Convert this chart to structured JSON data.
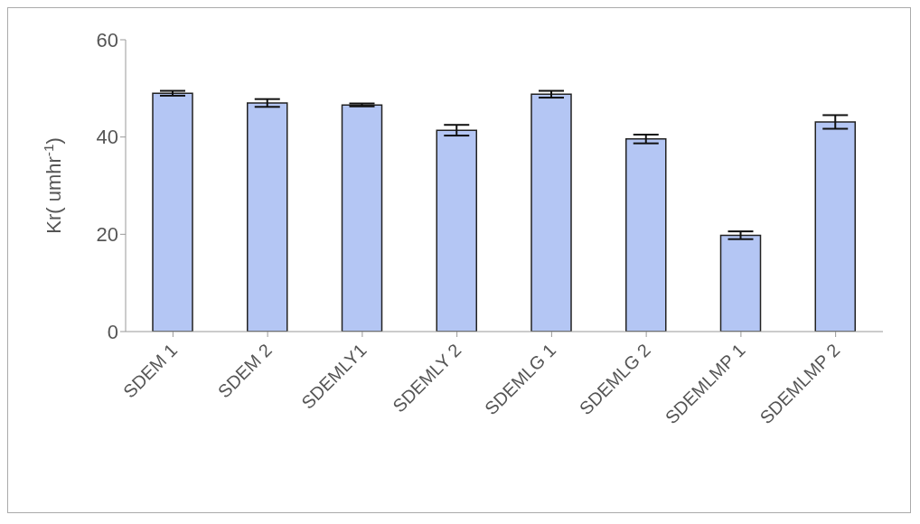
{
  "chart_data": {
    "type": "bar",
    "ylabel": "Kr( umhr$^{-1}$)",
    "categories": [
      "SDEM 1",
      "SDEM 2",
      "SDEMLY1",
      "SDEMLY 2",
      "SDEMLG 1",
      "SDEMLG 2",
      "SDEMLMP 1",
      "SDEMLMP 2"
    ],
    "values": [
      49,
      47,
      46.6,
      41.4,
      48.8,
      39.6,
      19.8,
      43.1
    ],
    "errors": [
      0.5,
      0.8,
      0.3,
      1.1,
      0.7,
      0.9,
      0.8,
      1.4
    ],
    "color": "#b4c6f4",
    "ylim": [
      0,
      60
    ],
    "yticks": [
      0,
      20,
      40,
      60
    ],
    "grid": false
  }
}
